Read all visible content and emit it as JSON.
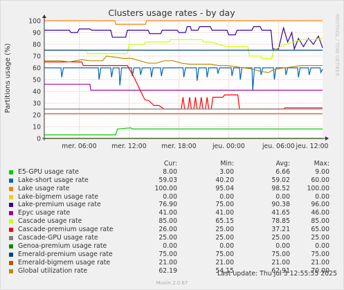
{
  "chart_data": {
    "type": "line",
    "title": "Clusters usage rates - by day",
    "ylabel": "Partitions usage (%)",
    "side_label": "RRDTOOL / TOBI OETIKER",
    "ylim": [
      0,
      100
    ],
    "yticks": [
      0,
      10,
      20,
      30,
      40,
      50,
      60,
      70,
      80,
      90,
      100
    ],
    "xlim": [
      0,
      33.5
    ],
    "xtick_labels": [
      "mer. 06:00",
      "mer. 12:00",
      "mer. 18:00",
      "jeu. 00:00",
      "jeu. 06:00",
      "jeu. 12:00"
    ],
    "xticks": [
      4.2,
      10.2,
      16.2,
      22.2,
      28.2,
      34.2
    ],
    "grid": true,
    "legend_headers": [
      "Cur:",
      "Min:",
      "Avg:",
      "Max:"
    ],
    "series": [
      {
        "name": "E5-GPU usage rate",
        "color": "#00cc00",
        "cur": "8.00",
        "min": "3.00",
        "avg": "6.66",
        "max": "9.00",
        "points": [
          [
            0,
            3
          ],
          [
            8.6,
            3
          ],
          [
            8.8,
            8
          ],
          [
            10.4,
            9
          ],
          [
            10.6,
            8
          ],
          [
            33.5,
            8
          ]
        ]
      },
      {
        "name": "Lake-short usage rate",
        "color": "#0066b3",
        "cur": "59.03",
        "min": "40.20",
        "avg": "59.02",
        "max": "60.00",
        "points": [
          [
            0,
            60
          ],
          [
            2,
            60
          ],
          [
            2.1,
            52
          ],
          [
            2.3,
            60
          ],
          [
            6.5,
            60
          ],
          [
            6.6,
            50
          ],
          [
            6.8,
            60
          ],
          [
            8,
            60
          ],
          [
            8.1,
            52
          ],
          [
            8.3,
            60
          ],
          [
            9,
            60
          ],
          [
            9.1,
            45
          ],
          [
            9.3,
            60
          ],
          [
            10.5,
            60
          ],
          [
            10.6,
            53
          ],
          [
            10.8,
            60
          ],
          [
            11.5,
            60
          ],
          [
            11.6,
            54
          ],
          [
            11.8,
            60
          ],
          [
            12.8,
            60
          ],
          [
            12.9,
            52
          ],
          [
            13.1,
            60
          ],
          [
            14,
            60
          ],
          [
            14.1,
            53
          ],
          [
            14.3,
            60
          ],
          [
            16.7,
            60
          ],
          [
            16.8,
            52
          ],
          [
            17,
            60
          ],
          [
            18.3,
            60
          ],
          [
            18.4,
            49
          ],
          [
            18.6,
            60
          ],
          [
            19.5,
            60
          ],
          [
            19.6,
            52
          ],
          [
            19.8,
            60
          ],
          [
            20.8,
            60
          ],
          [
            20.9,
            55
          ],
          [
            21.1,
            60
          ],
          [
            22.5,
            60
          ],
          [
            22.6,
            53
          ],
          [
            22.8,
            60
          ],
          [
            23.5,
            60
          ],
          [
            23.6,
            50
          ],
          [
            23.8,
            60
          ],
          [
            25,
            60
          ],
          [
            25.1,
            41
          ],
          [
            25.3,
            60
          ],
          [
            26,
            60
          ],
          [
            26.1,
            54
          ],
          [
            26.3,
            60
          ],
          [
            27.6,
            60
          ],
          [
            27.7,
            50
          ],
          [
            27.9,
            60
          ],
          [
            29,
            60
          ],
          [
            29.1,
            54
          ],
          [
            29.3,
            60
          ],
          [
            30.5,
            60
          ],
          [
            30.6,
            52
          ],
          [
            30.8,
            60
          ],
          [
            31.8,
            60
          ],
          [
            31.9,
            54
          ],
          [
            32.1,
            60
          ],
          [
            33.2,
            60
          ],
          [
            33.3,
            56
          ],
          [
            33.5,
            59
          ]
        ]
      },
      {
        "name": "Lake usage rate",
        "color": "#ff8000",
        "cur": "100.00",
        "min": "95.04",
        "avg": "98.52",
        "max": "100.00",
        "points": [
          [
            0,
            100
          ],
          [
            8.5,
            100
          ],
          [
            8.6,
            97
          ],
          [
            12.2,
            97
          ],
          [
            12.3,
            100
          ],
          [
            33.5,
            100
          ]
        ]
      },
      {
        "name": "Lake-bigmem usage rate",
        "color": "#ffcc00",
        "cur": "0.00",
        "min": "0.00",
        "avg": "0.00",
        "max": "0.00",
        "points": [
          [
            0,
            0
          ],
          [
            33.5,
            0
          ]
        ]
      },
      {
        "name": "Lake-premium usage rate",
        "color": "#330099",
        "cur": "76.90",
        "min": "75.00",
        "avg": "90.38",
        "max": "96.00",
        "points": [
          [
            0,
            92
          ],
          [
            3,
            92
          ],
          [
            3.2,
            90
          ],
          [
            4,
            90
          ],
          [
            4.2,
            93
          ],
          [
            5.5,
            93
          ],
          [
            5.7,
            92
          ],
          [
            8,
            92
          ],
          [
            8.2,
            86
          ],
          [
            9.8,
            86
          ],
          [
            10,
            92
          ],
          [
            12.5,
            92
          ],
          [
            12.7,
            89
          ],
          [
            14,
            89
          ],
          [
            14.2,
            92
          ],
          [
            16,
            92
          ],
          [
            16.2,
            90
          ],
          [
            17,
            90
          ],
          [
            17.2,
            95
          ],
          [
            17.6,
            95
          ],
          [
            17.7,
            92
          ],
          [
            18.5,
            92
          ],
          [
            18.7,
            95
          ],
          [
            20,
            95
          ],
          [
            20.2,
            92
          ],
          [
            22,
            92
          ],
          [
            22.2,
            88
          ],
          [
            23,
            88
          ],
          [
            23.2,
            92
          ],
          [
            25,
            92
          ],
          [
            25.2,
            95
          ],
          [
            26,
            95
          ],
          [
            26.2,
            92
          ],
          [
            27.3,
            92
          ],
          [
            27.5,
            76
          ],
          [
            28.2,
            76
          ],
          [
            28.4,
            82
          ],
          [
            28.8,
            94
          ],
          [
            29.3,
            82
          ],
          [
            29.8,
            90
          ],
          [
            30.1,
            76
          ],
          [
            30.6,
            85
          ],
          [
            31.2,
            78
          ],
          [
            31.8,
            85
          ],
          [
            32.4,
            80
          ],
          [
            33,
            87
          ],
          [
            33.5,
            77
          ]
        ]
      },
      {
        "name": "Epyc usage rate",
        "color": "#990099",
        "cur": "41.00",
        "min": "41.00",
        "avg": "41.65",
        "max": "46.00",
        "points": [
          [
            0,
            46
          ],
          [
            5.5,
            46
          ],
          [
            5.6,
            41
          ],
          [
            33.5,
            41
          ]
        ]
      },
      {
        "name": "Cascade usage rate",
        "color": "#ccff00",
        "cur": "85.00",
        "min": "65.15",
        "avg": "78.85",
        "max": "85.00",
        "points": [
          [
            0,
            75
          ],
          [
            1,
            75
          ],
          [
            5,
            75
          ],
          [
            5.2,
            72
          ],
          [
            10,
            72
          ],
          [
            10.2,
            80
          ],
          [
            12,
            80
          ],
          [
            12.2,
            82
          ],
          [
            15,
            82
          ],
          [
            15.2,
            84
          ],
          [
            19,
            84
          ],
          [
            19.2,
            82
          ],
          [
            20,
            82
          ],
          [
            21,
            80
          ],
          [
            22,
            78
          ],
          [
            24.5,
            78
          ],
          [
            24.7,
            70
          ],
          [
            26,
            70
          ],
          [
            26.2,
            68
          ],
          [
            27.4,
            68
          ],
          [
            27.6,
            75
          ],
          [
            29,
            80
          ],
          [
            30,
            82
          ],
          [
            31,
            84
          ],
          [
            32.5,
            84
          ],
          [
            33.5,
            85
          ]
        ]
      },
      {
        "name": "Cascade-premium usage rate",
        "color": "#ff0000",
        "cur": "26.00",
        "min": "25.00",
        "avg": "37.21",
        "max": "65.00",
        "points": [
          [
            0,
            65
          ],
          [
            4.5,
            65
          ],
          [
            4.7,
            62
          ],
          [
            10,
            62
          ],
          [
            10.8,
            52
          ],
          [
            11.2,
            46
          ],
          [
            11.6,
            40
          ],
          [
            12.1,
            33
          ],
          [
            12.6,
            32
          ],
          [
            13.2,
            28
          ],
          [
            13.8,
            28
          ],
          [
            14.4,
            25
          ],
          [
            16.5,
            25
          ],
          [
            16.7,
            35
          ],
          [
            16.9,
            25
          ],
          [
            17.3,
            25
          ],
          [
            17.5,
            35
          ],
          [
            17.7,
            25
          ],
          [
            18,
            25
          ],
          [
            18.2,
            35
          ],
          [
            18.4,
            25
          ],
          [
            18.7,
            25
          ],
          [
            18.9,
            35
          ],
          [
            19.1,
            25
          ],
          [
            19.4,
            25
          ],
          [
            19.6,
            35
          ],
          [
            19.8,
            25
          ],
          [
            20.1,
            25
          ],
          [
            20.3,
            35
          ],
          [
            21.5,
            35
          ],
          [
            21.7,
            37
          ],
          [
            23.3,
            37
          ],
          [
            23.5,
            25
          ],
          [
            28.8,
            25
          ],
          [
            29,
            26
          ],
          [
            33.5,
            26
          ]
        ]
      },
      {
        "name": "Cascade-GPU usage rate",
        "color": "#808080",
        "cur": "25.00",
        "min": "25.00",
        "avg": "25.00",
        "max": "25.00",
        "points": [
          [
            0,
            25
          ],
          [
            33.5,
            25
          ]
        ]
      },
      {
        "name": "Genoa-premium usage rate",
        "color": "#008f00",
        "cur": "0.00",
        "min": "0.00",
        "avg": "0.00",
        "max": "0.00",
        "points": [
          [
            0,
            0
          ],
          [
            33.5,
            0
          ]
        ]
      },
      {
        "name": "Emerald-premium usage rate",
        "color": "#00487d",
        "cur": "75.00",
        "min": "75.00",
        "avg": "75.00",
        "max": "75.00",
        "points": [
          [
            0,
            75
          ],
          [
            33.5,
            75
          ]
        ]
      },
      {
        "name": "Emerald-bigmem usage rate",
        "color": "#b35a00",
        "cur": "21.00",
        "min": "21.00",
        "avg": "21.00",
        "max": "21.00",
        "points": [
          [
            0,
            21
          ],
          [
            33.5,
            21
          ]
        ]
      },
      {
        "name": "Global utilization rate",
        "color": "#b38f00",
        "cur": "62.19",
        "min": "54.15",
        "avg": "62.91",
        "max": "70.00",
        "points": [
          [
            0,
            66
          ],
          [
            2,
            66
          ],
          [
            3,
            65
          ],
          [
            4.5,
            67
          ],
          [
            5.5,
            66
          ],
          [
            7,
            66
          ],
          [
            7.5,
            70
          ],
          [
            8.5,
            69
          ],
          [
            9.5,
            68
          ],
          [
            10.5,
            68
          ],
          [
            11.5,
            66
          ],
          [
            12.5,
            64
          ],
          [
            13.5,
            64
          ],
          [
            14.5,
            66
          ],
          [
            15.5,
            66
          ],
          [
            16.5,
            64
          ],
          [
            17.5,
            63
          ],
          [
            18.5,
            63
          ],
          [
            20,
            63
          ],
          [
            21,
            62
          ],
          [
            22,
            62
          ],
          [
            23,
            61
          ],
          [
            24,
            60
          ],
          [
            25,
            59
          ],
          [
            26,
            57
          ],
          [
            27,
            56
          ],
          [
            27.5,
            58
          ],
          [
            28,
            59
          ],
          [
            29,
            60
          ],
          [
            30,
            61
          ],
          [
            31,
            62
          ],
          [
            32,
            62
          ],
          [
            33.5,
            62
          ]
        ]
      }
    ]
  },
  "footer": {
    "last_update": "Last update: Thu Jul  3 12:55:55 2025",
    "version": "Munin 2.0.67"
  }
}
